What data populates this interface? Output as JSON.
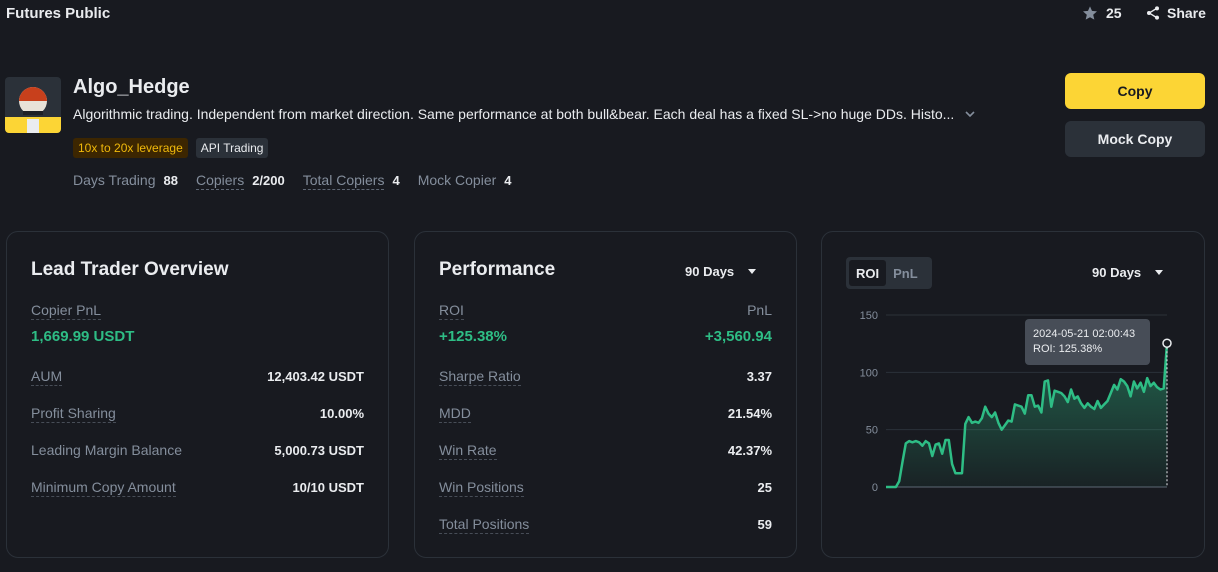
{
  "header": {
    "title": "Futures Public",
    "favorites_count": "25",
    "share_label": "Share"
  },
  "trader": {
    "name": "Algo_Hedge",
    "bio": "Algorithmic trading. Independent from market direction. Same performance at both bull&bear. Each deal has a fixed SL->no huge DDs. Histo...",
    "tags": [
      "10x to 20x leverage",
      "API Trading"
    ],
    "stats": [
      {
        "label": "Days Trading",
        "value": "88"
      },
      {
        "label": "Copiers",
        "value": "2/200"
      },
      {
        "label": "Total Copiers",
        "value": "4"
      },
      {
        "label": "Mock Copier",
        "value": "4"
      }
    ]
  },
  "actions": {
    "copy_label": "Copy",
    "mock_copy_label": "Mock Copy"
  },
  "overview": {
    "title": "Lead Trader Overview",
    "copier_pnl_label": "Copier PnL",
    "copier_pnl_value": "1,669.99 USDT",
    "rows": [
      {
        "label": "AUM",
        "value": "12,403.42 USDT"
      },
      {
        "label": "Profit Sharing",
        "value": "10.00%"
      },
      {
        "label": "Leading Margin Balance",
        "value": "5,000.73 USDT"
      },
      {
        "label": "Minimum Copy Amount",
        "value": "10/10 USDT"
      }
    ]
  },
  "performance": {
    "title": "Performance",
    "period": "90 Days",
    "roi_label": "ROI",
    "roi_value": "+125.38%",
    "pnl_label": "PnL",
    "pnl_value": "+3,560.94",
    "rows": [
      {
        "label": "Sharpe Ratio",
        "value": "3.37"
      },
      {
        "label": "MDD",
        "value": "21.54%"
      },
      {
        "label": "Win Rate",
        "value": "42.37%"
      },
      {
        "label": "Win Positions",
        "value": "25"
      },
      {
        "label": "Total Positions",
        "value": "59"
      }
    ]
  },
  "chart_panel": {
    "tabs": [
      "ROI",
      "PnL"
    ],
    "active_tab": "ROI",
    "period": "90 Days",
    "tooltip_date": "2024-05-21 02:00:43",
    "tooltip_value": "ROI: 125.38%"
  },
  "chart_data": {
    "type": "area",
    "title": "",
    "xlabel": "",
    "ylabel": "",
    "ylim": [
      0,
      150
    ],
    "yticks": [
      0,
      50,
      100,
      150
    ],
    "grid": true,
    "color": "#2ebd85",
    "values": [
      0,
      0,
      0,
      0,
      5,
      22,
      38,
      40,
      39,
      40,
      39,
      36,
      40,
      38,
      27,
      37,
      38,
      29,
      41,
      41,
      20,
      12,
      12,
      12,
      55,
      61,
      56,
      57,
      56,
      60,
      70,
      64,
      61,
      65,
      56,
      50,
      54,
      58,
      57,
      72,
      71,
      70,
      64,
      80,
      80,
      70,
      71,
      65,
      92,
      93,
      70,
      84,
      83,
      82,
      79,
      74,
      85,
      77,
      79,
      73,
      69,
      73,
      70,
      68,
      75,
      69,
      72,
      75,
      82,
      89,
      85,
      94,
      92,
      88,
      79,
      92,
      86,
      91,
      83,
      95,
      88,
      91,
      87,
      85,
      86,
      125.38
    ]
  },
  "colors": {
    "background": "#181a20",
    "accent": "#fcd535",
    "positive": "#2ebd85",
    "leverage_tag": "#f0b90b"
  }
}
